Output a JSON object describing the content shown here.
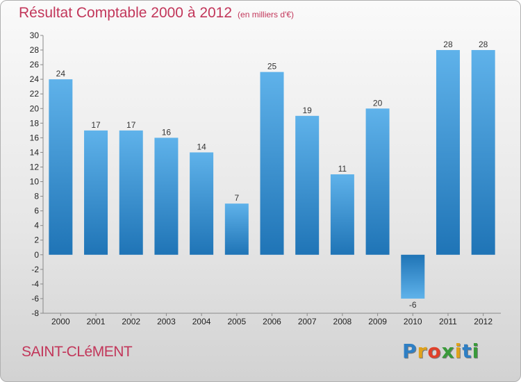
{
  "title": "Résultat Comptable 2000 à 2012",
  "subtitle": "(en milliers d'€)",
  "commune": "SAINT-CLéMENT",
  "logo": {
    "text": "Proxiti",
    "colors": [
      "#2e7fc4",
      "#e0a21a",
      "#e0402a",
      "#3a9a3a",
      "#e0a21a",
      "#2e7fc4",
      "#3a9a3a"
    ]
  },
  "colors": {
    "bar_top": "#5fb2ea",
    "bar_bottom": "#1f74b6",
    "text": "#c2365a"
  },
  "chart_data": {
    "type": "bar",
    "categories": [
      "2000",
      "2001",
      "2002",
      "2003",
      "2004",
      "2005",
      "2006",
      "2007",
      "2008",
      "2009",
      "2010",
      "2011",
      "2012"
    ],
    "values": [
      24,
      17,
      17,
      16,
      14,
      7,
      25,
      19,
      11,
      20,
      -6,
      28,
      28
    ],
    "title": "Résultat Comptable 2000 à 2012",
    "subtitle": "(en milliers d'€)",
    "xlabel": "",
    "ylabel": "",
    "ylim": [
      -8,
      30
    ],
    "yticks": [
      -8,
      -6,
      -4,
      -2,
      0,
      2,
      4,
      6,
      8,
      10,
      12,
      14,
      16,
      18,
      20,
      22,
      24,
      26,
      28,
      30
    ],
    "grid": false,
    "data_labels": true
  }
}
